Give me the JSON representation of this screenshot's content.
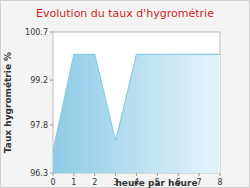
{
  "chart_data": {
    "type": "area",
    "title": "Evolution du taux d'hygrométrie",
    "x_label": "heure par heure",
    "y_label": "Taux hygrométrie %",
    "x": [
      0,
      1,
      2,
      3,
      4,
      5,
      6,
      7,
      8
    ],
    "values": [
      97.0,
      100.0,
      100.0,
      97.3,
      100.0,
      100.0,
      100.0,
      100.0,
      100.0
    ],
    "color": "#8ccbe6",
    "xlim": [
      0,
      8
    ],
    "xticks": [
      0,
      1,
      2,
      3,
      4,
      5,
      6,
      7,
      8
    ],
    "ylim": [
      96.3,
      100.7
    ],
    "yticks": [
      96.3,
      97.8,
      99.2,
      100.7
    ],
    "grid": false
  }
}
